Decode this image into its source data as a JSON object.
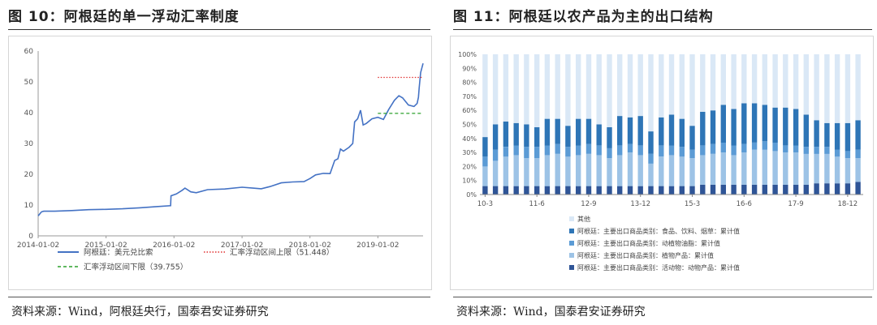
{
  "left": {
    "figure_title": "图 10：阿根廷的单一浮动汇率制度",
    "source": "资料来源：Wind，阿根廷央行，国泰君安证券研究",
    "chart_data": {
      "type": "line",
      "title": "",
      "xlabel": "",
      "ylabel": "",
      "ylim": [
        0,
        60
      ],
      "y_ticks": [
        0,
        10,
        20,
        30,
        40,
        50,
        60
      ],
      "x_ticks": [
        "2014-01-02",
        "2015-01-02",
        "2016-01-02",
        "2017-01-02",
        "2018-01-02",
        "2019-01-02"
      ],
      "x_range": [
        "2014-01-02",
        "2019-09-02"
      ],
      "series": [
        {
          "name": "阿根廷：美元兑比索",
          "color": "#4472c4",
          "style": "solid",
          "x": [
            "2014-01-02",
            "2014-01-20",
            "2014-02-01",
            "2014-04-01",
            "2014-07-01",
            "2014-10-01",
            "2015-01-02",
            "2015-04-01",
            "2015-07-01",
            "2015-10-01",
            "2015-12-15",
            "2015-12-17",
            "2016-01-15",
            "2016-02-15",
            "2016-03-01",
            "2016-04-01",
            "2016-05-01",
            "2016-07-01",
            "2016-10-01",
            "2017-01-02",
            "2017-03-01",
            "2017-04-15",
            "2017-06-01",
            "2017-08-01",
            "2017-10-01",
            "2017-12-01",
            "2018-01-02",
            "2018-02-01",
            "2018-03-15",
            "2018-04-20",
            "2018-05-15",
            "2018-06-01",
            "2018-06-15",
            "2018-07-01",
            "2018-08-01",
            "2018-08-20",
            "2018-08-30",
            "2018-09-15",
            "2018-10-01",
            "2018-10-15",
            "2018-11-01",
            "2018-12-01",
            "2019-01-02",
            "2019-02-01",
            "2019-03-01",
            "2019-04-01",
            "2019-04-25",
            "2019-05-15",
            "2019-06-15",
            "2019-07-15",
            "2019-08-01",
            "2019-08-08",
            "2019-08-12",
            "2019-08-20",
            "2019-09-02"
          ],
          "values": [
            6.5,
            7.8,
            8.0,
            8.0,
            8.2,
            8.5,
            8.6,
            8.8,
            9.1,
            9.5,
            9.8,
            13.0,
            13.6,
            14.8,
            15.5,
            14.3,
            14.0,
            15.0,
            15.2,
            15.8,
            15.5,
            15.3,
            16.0,
            17.2,
            17.5,
            17.6,
            18.6,
            19.8,
            20.3,
            20.2,
            24.5,
            25.0,
            28.2,
            27.5,
            28.8,
            30.0,
            37.0,
            38.0,
            40.8,
            36.0,
            36.5,
            38.0,
            38.5,
            37.8,
            41.0,
            44.0,
            45.5,
            44.8,
            42.5,
            42.0,
            43.0,
            45.0,
            48.0,
            53.0,
            56.0
          ]
        },
        {
          "name": "汇率浮动区间上限（51.448）",
          "color": "#e03030",
          "style": "dotted",
          "x": [
            "2019-01-02",
            "2019-09-02"
          ],
          "values": [
            51.448,
            51.448
          ]
        },
        {
          "name": "汇率浮动区间下限（39.755）",
          "color": "#2ca02c",
          "style": "dashed",
          "x": [
            "2019-01-02",
            "2019-09-02"
          ],
          "values": [
            39.755,
            39.755
          ]
        }
      ],
      "legend_position": "bottom",
      "grid": false
    }
  },
  "right": {
    "figure_title": "图 11：阿根廷以农产品为主的出口结构",
    "source": "资料来源：Wind，国泰君安证券研究",
    "chart_data": {
      "type": "bar",
      "stacked": true,
      "title": "",
      "xlabel": "",
      "ylabel": "",
      "ylim": [
        0,
        100
      ],
      "y_ticks": [
        "0%",
        "10%",
        "20%",
        "30%",
        "40%",
        "50%",
        "60%",
        "70%",
        "80%",
        "90%",
        "100%"
      ],
      "x_tick_labels": [
        "10-3",
        "11-6",
        "12-9",
        "13-12",
        "15-3",
        "16-6",
        "17-9",
        "18-12"
      ],
      "x_tick_every": 5,
      "categories": [
        "10-3",
        "10-6",
        "10-9",
        "10-12",
        "11-3",
        "11-6",
        "11-9",
        "11-12",
        "12-3",
        "12-6",
        "12-9",
        "12-12",
        "13-3",
        "13-6",
        "13-9",
        "13-12",
        "14-3",
        "14-6",
        "14-9",
        "14-12",
        "15-3",
        "15-6",
        "15-9",
        "15-12",
        "16-3",
        "16-6",
        "16-9",
        "16-12",
        "17-3",
        "17-6",
        "17-9",
        "17-12",
        "18-3",
        "18-6",
        "18-9",
        "18-12",
        "19-3"
      ],
      "series": [
        {
          "name": "阿根廷：主要出口商品类别：活动物：动物产品：累计值",
          "color": "#2f5597",
          "values": [
            6,
            6,
            6,
            6,
            6,
            6,
            6,
            6,
            6,
            6,
            6,
            6,
            6,
            6,
            6,
            6,
            6,
            6,
            6,
            6,
            6,
            7,
            7,
            7,
            7,
            7,
            7,
            7,
            7,
            7,
            7,
            7,
            8,
            8,
            8,
            8,
            9
          ]
        },
        {
          "name": "阿根廷：主要出口商品类别：植物产品：累计值",
          "color": "#9dc3e6",
          "values": [
            14,
            18,
            21,
            22,
            20,
            20,
            22,
            23,
            21,
            22,
            23,
            22,
            20,
            22,
            24,
            22,
            16,
            21,
            22,
            21,
            20,
            21,
            22,
            23,
            21,
            23,
            25,
            25,
            24,
            23,
            23,
            22,
            21,
            21,
            19,
            18,
            17
          ]
        },
        {
          "name": "阿根廷：主要出口商品类别：动植物油脂：累计值",
          "color": "#5b9bd5",
          "values": [
            7,
            8,
            7,
            7,
            8,
            8,
            7,
            7,
            7,
            7,
            7,
            7,
            7,
            7,
            6,
            7,
            7,
            8,
            7,
            7,
            6,
            7,
            7,
            7,
            7,
            6,
            5,
            6,
            6,
            5,
            5,
            5,
            5,
            5,
            5,
            5,
            6
          ]
        },
        {
          "name": "阿根廷：主要出口商品类别：食品、饮料、烟草：累计值",
          "color": "#2e75b6",
          "values": [
            14,
            18,
            18,
            16,
            16,
            14,
            19,
            18,
            15,
            19,
            18,
            15,
            15,
            21,
            19,
            21,
            16,
            20,
            22,
            20,
            17,
            24,
            24,
            27,
            26,
            29,
            28,
            26,
            25,
            27,
            26,
            23,
            19,
            17,
            19,
            20,
            21
          ]
        },
        {
          "name": "其他",
          "color": "#dae8f6",
          "values": [
            59,
            50,
            48,
            49,
            50,
            52,
            46,
            46,
            51,
            46,
            46,
            50,
            52,
            44,
            45,
            44,
            55,
            45,
            43,
            46,
            51,
            41,
            40,
            36,
            39,
            35,
            35,
            36,
            38,
            38,
            39,
            43,
            47,
            49,
            49,
            49,
            47
          ]
        }
      ],
      "legend_position": "bottom",
      "legend_order": [
        "其他",
        "阿根廷：主要出口商品类别：食品、饮料、烟草：累计值",
        "阿根廷：主要出口商品类别：动植物油脂：累计值",
        "阿根廷：主要出口商品类别：植物产品：累计值",
        "阿根廷：主要出口商品类别：活动物：动物产品：累计值"
      ],
      "grid": false
    }
  }
}
